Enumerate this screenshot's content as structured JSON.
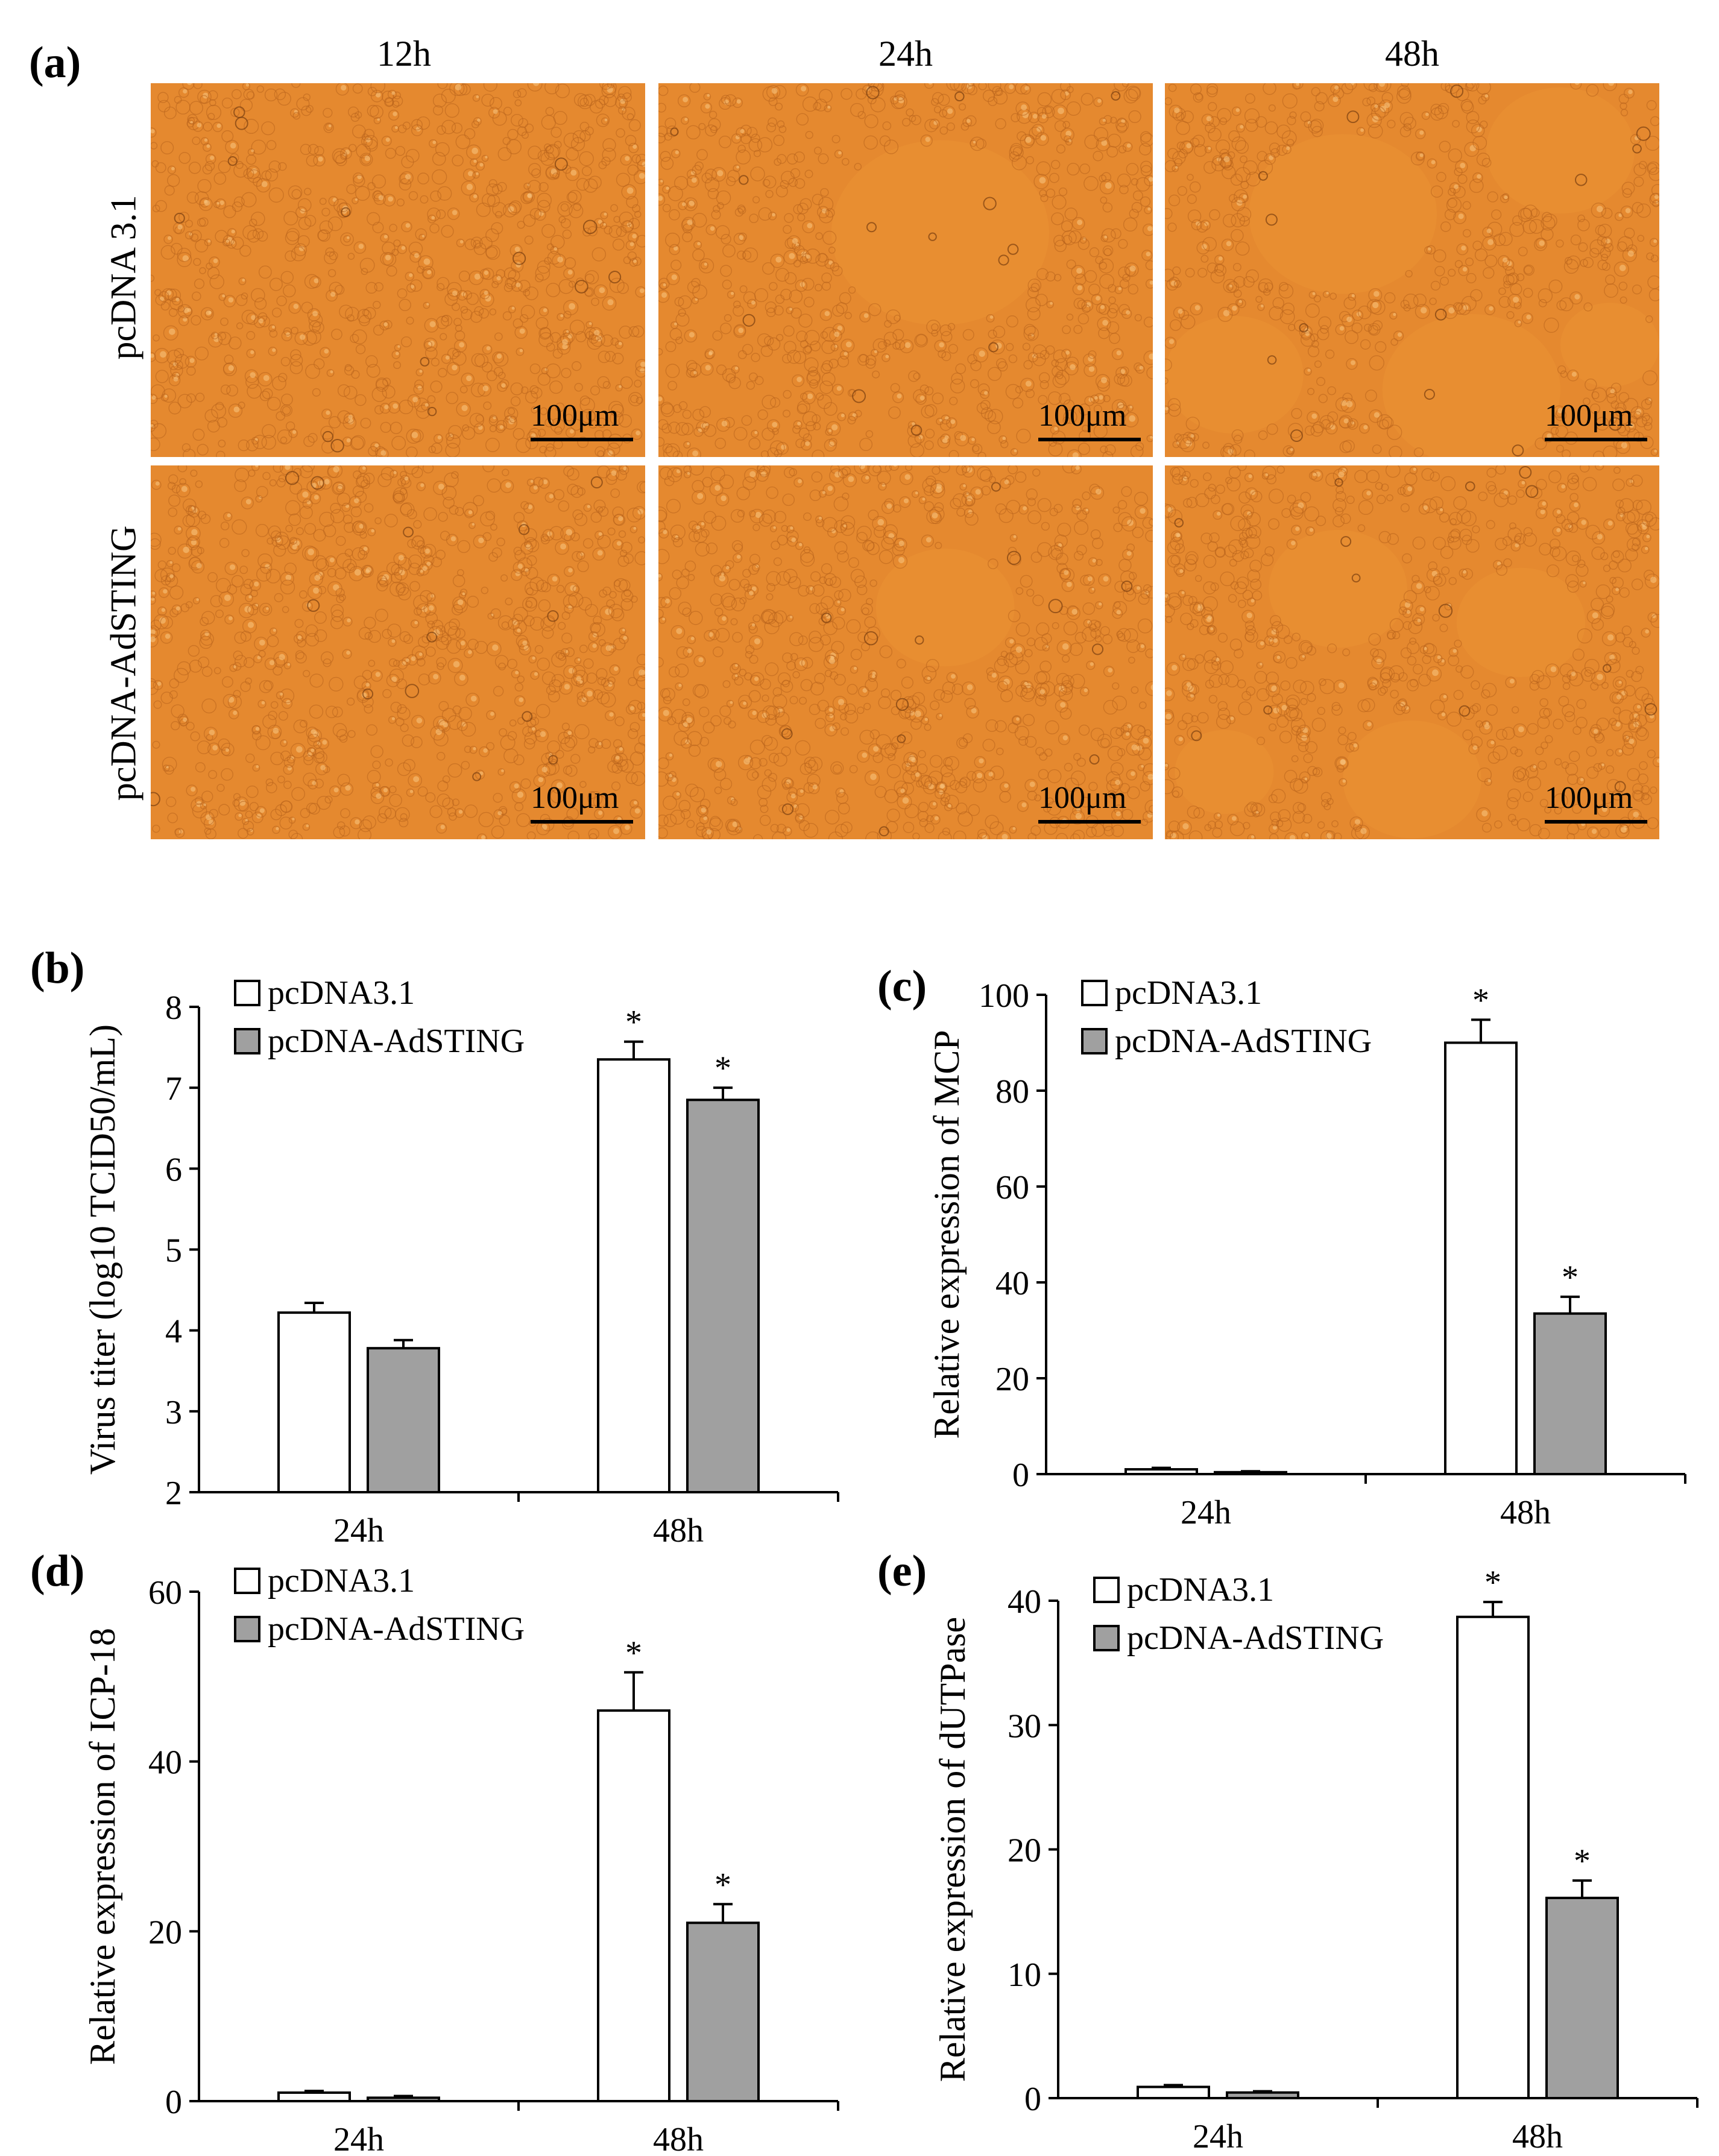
{
  "panel_a": {
    "label": "(a)",
    "columns": [
      "12h",
      "24h",
      "48h"
    ],
    "rows": [
      "pcDNA 3.1",
      "pcDNA-AdSTING"
    ],
    "scale_bar": "100μm",
    "image_color": "#e5892f"
  },
  "colors": {
    "white_bar": "#ffffff",
    "gray_bar": "#a0a0a0",
    "stroke": "#000000"
  },
  "chart_data": [
    {
      "id": "b",
      "panel_label": "(b)",
      "type": "bar",
      "categories": [
        "24h",
        "48h"
      ],
      "series": [
        {
          "name": "pcDNA3.1",
          "values": [
            4.22,
            7.35
          ],
          "errors": [
            0.12,
            0.22
          ]
        },
        {
          "name": "pcDNA-AdSTING",
          "values": [
            3.78,
            6.85
          ],
          "errors": [
            0.1,
            0.15
          ]
        }
      ],
      "significance": [
        [
          "",
          "*"
        ],
        [
          "",
          "*"
        ]
      ],
      "ylabel": "Virus titer (log10 TCID50/mL)",
      "ylim": [
        2,
        8
      ],
      "yticks": [
        2,
        3,
        4,
        5,
        6,
        7,
        8
      ],
      "legend": "top-left"
    },
    {
      "id": "c",
      "panel_label": "(c)",
      "type": "bar",
      "categories": [
        "24h",
        "48h"
      ],
      "series": [
        {
          "name": "pcDNA3.1",
          "values": [
            1.0,
            90.0
          ],
          "errors": [
            0.3,
            4.8
          ]
        },
        {
          "name": "pcDNA-AdSTING",
          "values": [
            0.4,
            33.5
          ],
          "errors": [
            0.2,
            3.5
          ]
        }
      ],
      "significance": [
        [
          "",
          "*"
        ],
        [
          "",
          "*"
        ]
      ],
      "ylabel": "Relative expression of MCP",
      "ylim": [
        0,
        100
      ],
      "yticks": [
        0,
        20,
        40,
        60,
        80,
        100
      ],
      "legend": "top-left"
    },
    {
      "id": "d",
      "panel_label": "(d)",
      "type": "bar",
      "categories": [
        "24h",
        "48h"
      ],
      "series": [
        {
          "name": "pcDNA3.1",
          "values": [
            1.0,
            46.0
          ],
          "errors": [
            0.2,
            4.5
          ]
        },
        {
          "name": "pcDNA-AdSTING",
          "values": [
            0.4,
            21.0
          ],
          "errors": [
            0.2,
            2.2
          ]
        }
      ],
      "significance": [
        [
          "",
          "*"
        ],
        [
          "",
          "*"
        ]
      ],
      "ylabel": "Relative expression of ICP-18",
      "ylim": [
        0,
        60
      ],
      "yticks": [
        0,
        20,
        40,
        60
      ],
      "legend": "top-left"
    },
    {
      "id": "e",
      "panel_label": "(e)",
      "type": "bar",
      "categories": [
        "24h",
        "48h"
      ],
      "series": [
        {
          "name": "pcDNA3.1",
          "values": [
            0.9,
            38.7
          ],
          "errors": [
            0.15,
            1.2
          ]
        },
        {
          "name": "pcDNA-AdSTING",
          "values": [
            0.45,
            16.1
          ],
          "errors": [
            0.1,
            1.4
          ]
        }
      ],
      "significance": [
        [
          "",
          "*"
        ],
        [
          "",
          "*"
        ]
      ],
      "ylabel": "Relative expression of dUTPase",
      "ylim": [
        0,
        40
      ],
      "yticks": [
        0,
        10,
        20,
        30,
        40
      ],
      "legend": "top-left"
    }
  ]
}
